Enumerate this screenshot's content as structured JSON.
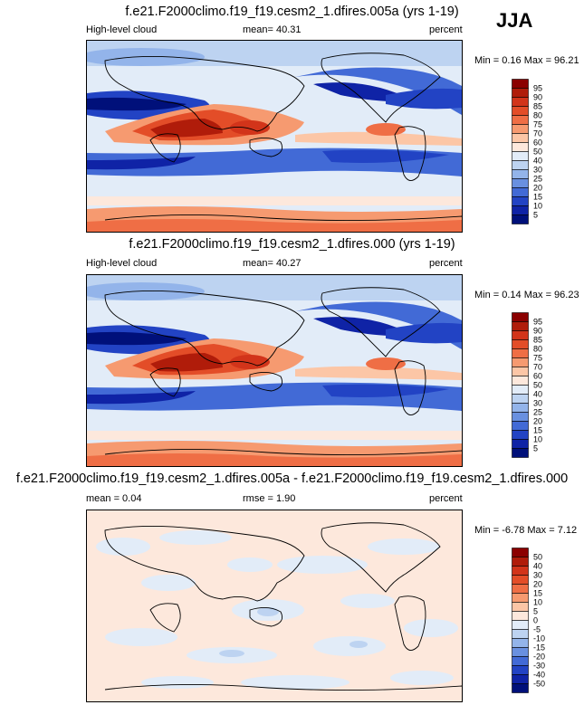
{
  "season": "JJA",
  "panels": [
    {
      "title": "f.e21.F2000climo.f19_f19.cesm2_1.dfires.005a (yrs 1-19)",
      "left_label": "High-level cloud",
      "center_label": "mean=  40.31",
      "right_label": "percent",
      "minmax": "Min =   0.16 Max =  96.21",
      "colorbar_levels": [
        "95",
        "90",
        "85",
        "80",
        "75",
        "70",
        "60",
        "50",
        "40",
        "30",
        "25",
        "20",
        "15",
        "10",
        "5"
      ],
      "colorbar_colors": [
        "#8b0000",
        "#b01c0a",
        "#d2341a",
        "#e34d28",
        "#ef6e45",
        "#f69a70",
        "#fcc6a6",
        "#fde8dc",
        "#e2ecf8",
        "#bdd3f1",
        "#93b4ea",
        "#6990e0",
        "#426ad6",
        "#2243c4",
        "#0f23a6",
        "#00107a"
      ]
    },
    {
      "title": "f.e21.F2000climo.f19_f19.cesm2_1.dfires.000 (yrs 1-19)",
      "left_label": "High-level cloud",
      "center_label": "mean=  40.27",
      "right_label": "percent",
      "minmax": "Min =   0.14 Max =  96.23",
      "colorbar_levels": [
        "95",
        "90",
        "85",
        "80",
        "75",
        "70",
        "60",
        "50",
        "40",
        "30",
        "25",
        "20",
        "15",
        "10",
        "5"
      ],
      "colorbar_colors": [
        "#8b0000",
        "#b01c0a",
        "#d2341a",
        "#e34d28",
        "#ef6e45",
        "#f69a70",
        "#fcc6a6",
        "#fde8dc",
        "#e2ecf8",
        "#bdd3f1",
        "#93b4ea",
        "#6990e0",
        "#426ad6",
        "#2243c4",
        "#0f23a6",
        "#00107a"
      ]
    },
    {
      "title": "f.e21.F2000climo.f19_f19.cesm2_1.dfires.005a - f.e21.F2000climo.f19_f19.cesm2_1.dfires.000",
      "left_label": "mean =   0.04",
      "center_label": "rmse =   1.90",
      "right_label": "percent",
      "minmax": "Min =  -6.78 Max =   7.12",
      "colorbar_levels": [
        "50",
        "40",
        "30",
        "20",
        "15",
        "10",
        "5",
        "0",
        "-5",
        "-10",
        "-15",
        "-20",
        "-30",
        "-40",
        "-50"
      ],
      "colorbar_colors": [
        "#8b0000",
        "#b01c0a",
        "#d2341a",
        "#e34d28",
        "#ef6e45",
        "#f69a70",
        "#fcc6a6",
        "#fde8dc",
        "#e2ecf8",
        "#bdd3f1",
        "#93b4ea",
        "#6990e0",
        "#426ad6",
        "#2243c4",
        "#0f23a6",
        "#00107a"
      ]
    }
  ],
  "chart_data": {
    "type": "heatmap",
    "variable": "High-level cloud",
    "units": "percent",
    "season": "JJA",
    "map_projection": "cylindrical equidistant, centered on dateline",
    "fields": [
      {
        "name": "f.e21.F2000climo.f19_f19.cesm2_1.dfires.005a (yrs 1-19)",
        "mean": 40.31,
        "min": 0.16,
        "max": 96.21
      },
      {
        "name": "f.e21.F2000climo.f19_f19.cesm2_1.dfires.000 (yrs 1-19)",
        "mean": 40.27,
        "min": 0.14,
        "max": 96.23
      },
      {
        "name": "f.e21.F2000climo.f19_f19.cesm2_1.dfires.005a - f.e21.F2000climo.f19_f19.cesm2_1.dfires.000",
        "mean": 0.04,
        "rmse": 1.9,
        "min": -6.78,
        "max": 7.12
      }
    ],
    "contour_levels_abs": [
      5,
      10,
      15,
      20,
      25,
      30,
      40,
      50,
      60,
      70,
      75,
      80,
      85,
      90,
      95
    ],
    "contour_levels_diff": [
      -50,
      -40,
      -30,
      -20,
      -15,
      -10,
      -5,
      0,
      5,
      10,
      15,
      20,
      30,
      40,
      50
    ]
  }
}
